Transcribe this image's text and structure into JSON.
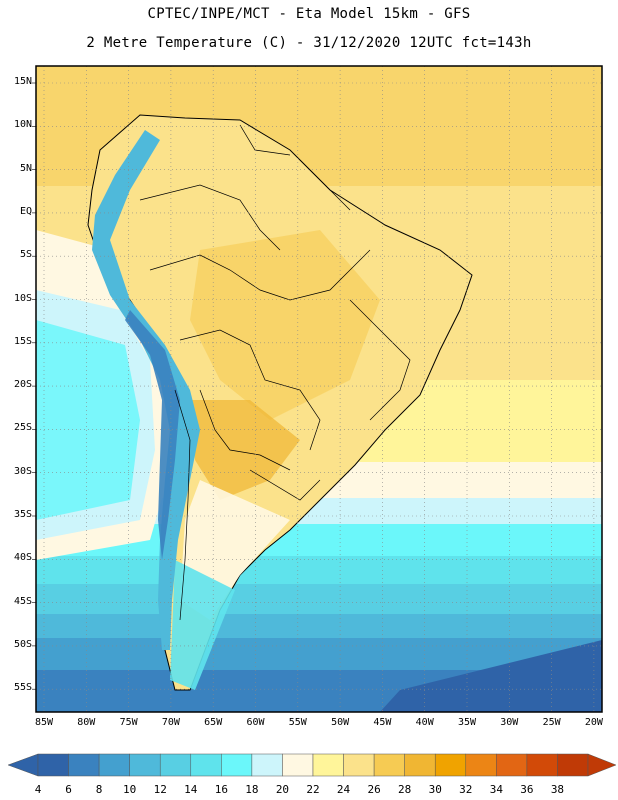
{
  "title": {
    "line1": "CPTEC/INPE/MCT -  Eta Model 15km - GFS",
    "line2": "2 Metre Temperature (C) - 31/12/2020 12UTC fct=143h"
  },
  "axes": {
    "lat_labels": [
      "15N",
      "10N",
      "5N",
      "EQ",
      "5S",
      "10S",
      "15S",
      "20S",
      "25S",
      "30S",
      "35S",
      "40S",
      "45S",
      "50S",
      "55S"
    ],
    "lon_labels": [
      "85W",
      "80W",
      "75W",
      "70W",
      "65W",
      "60W",
      "55W",
      "50W",
      "45W",
      "40W",
      "35W",
      "30W",
      "25W",
      "20W"
    ]
  },
  "colorbar": {
    "labels": [
      "4",
      "6",
      "8",
      "10",
      "12",
      "14",
      "16",
      "18",
      "20",
      "22",
      "24",
      "26",
      "28",
      "30",
      "32",
      "34",
      "36",
      "38"
    ],
    "colors": [
      "#2f63a8",
      "#3a82bf",
      "#44a0cf",
      "#4fb9da",
      "#58cfe3",
      "#5fe3ec",
      "#6bf7fa",
      "#cdf5fb",
      "#fff8e2",
      "#fff59a",
      "#fbe28b",
      "#f6cb53",
      "#f0b633",
      "#f0a300",
      "#ec8515",
      "#e26614",
      "#d24a08",
      "#c03a06"
    ]
  },
  "map": {
    "colors": {
      "deep_sea": "#2f63a8",
      "cold_sea": "#3a82bf",
      "mid_sea": "#44a0cf",
      "cool_sea": "#4fb9da",
      "mild_sea": "#58cfe3",
      "light_sea": "#5fe3ec",
      "pale": "#cdf5fb",
      "cream": "#fff8e2",
      "pale_yellow": "#fff59a",
      "yellow": "#fbe28b",
      "gold": "#f6cb53",
      "orange": "#f0b633",
      "andes": "#4fb9da"
    }
  }
}
